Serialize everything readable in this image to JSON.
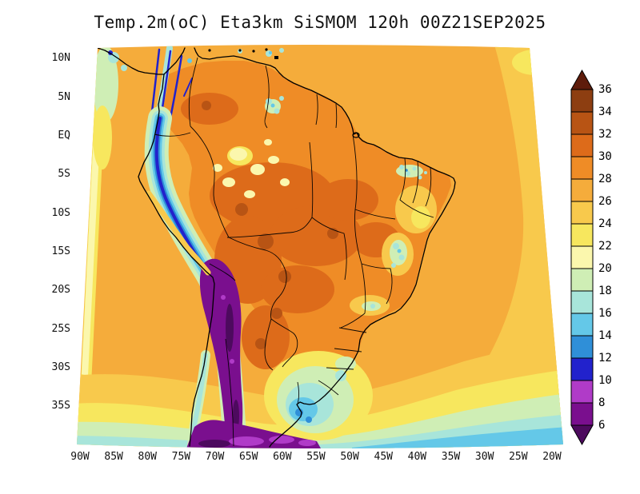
{
  "title": "Temp.2m(oC) Eta3km SiSMOM 120h 00Z21SEP2025",
  "chart_data": {
    "type": "heatmap",
    "title": "Temp.2m(oC) Eta3km SiSMOM 120h 00Z21SEP2025",
    "variable": "Temp.2m",
    "units": "oC",
    "model": "Eta3km",
    "system": "SiSMOM",
    "forecast_hour": "120h",
    "valid_time": "00Z21SEP2025",
    "x_axis": {
      "ticks": [
        "90W",
        "85W",
        "80W",
        "75W",
        "70W",
        "65W",
        "60W",
        "55W",
        "50W",
        "45W",
        "40W",
        "35W",
        "30W",
        "25W",
        "20W"
      ]
    },
    "y_axis": {
      "ticks": [
        "10N",
        "5N",
        "EQ",
        "5S",
        "10S",
        "15S",
        "20S",
        "25S",
        "30S",
        "35S"
      ]
    },
    "colorbar": {
      "orientation": "vertical-right",
      "levels": [
        "36",
        "34",
        "32",
        "30",
        "28",
        "26",
        "24",
        "22",
        "20",
        "18",
        "16",
        "14",
        "12",
        "10",
        "8",
        "6"
      ],
      "colors": [
        "#5e1c0b",
        "#8d3e11",
        "#b85414",
        "#dd6b1a",
        "#ef8c26",
        "#f5ac3b",
        "#f8c94c",
        "#f7e75e",
        "#fbf7ad",
        "#cfeeb5",
        "#a8e5da",
        "#64c8e8",
        "#2f8fd8",
        "#2222cc",
        "#b03bc8",
        "#7a0f8e",
        "#4d0a5e"
      ]
    },
    "field_readings": [
      {
        "region": "tropical ocean and Amazon basin",
        "approx_value_c": "26-32"
      },
      {
        "region": "central Brazil interior",
        "approx_value_c": "28-34"
      },
      {
        "region": "Andes cordillera / Altiplano",
        "approx_value_c": "<6-14"
      },
      {
        "region": "southern Brazil / Uruguay",
        "approx_value_c": "14-22"
      },
      {
        "region": "far southern ocean edge",
        "approx_value_c": "6-18"
      }
    ]
  }
}
